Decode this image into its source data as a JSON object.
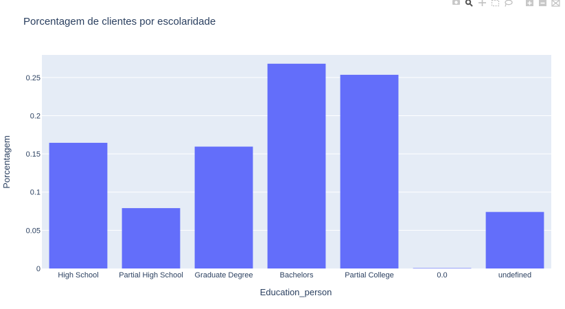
{
  "chart_data": {
    "type": "bar",
    "title": "Porcentagem de clientes por escolaridade",
    "xlabel": "Education_person",
    "ylabel": "Porcentagem",
    "categories": [
      "High School",
      "Partial High School",
      "Graduate Degree",
      "Bachelors",
      "Partial College",
      "0.0",
      "undefined"
    ],
    "values": [
      0.1645,
      0.079,
      0.1595,
      0.268,
      0.2535,
      0.0005,
      0.074
    ],
    "ylim": [
      0,
      0.2795
    ],
    "yticks": [
      0,
      0.05,
      0.1,
      0.15,
      0.2,
      0.25
    ],
    "ytick_labels": [
      "0",
      "0.05",
      "0.1",
      "0.15",
      "0.2",
      "0.25"
    ],
    "grid": true,
    "legend": "none",
    "colors": {
      "bar": "#636efa",
      "plot_bg": "#e5ecf6",
      "grid": "#ffffff",
      "text": "#2a3f5f"
    }
  },
  "modebar": {
    "icons": [
      "camera-icon",
      "zoom-icon",
      "pan-icon",
      "box-select-icon",
      "lasso-icon",
      "zoom-in-icon",
      "zoom-out-icon",
      "autoscale-icon"
    ]
  }
}
